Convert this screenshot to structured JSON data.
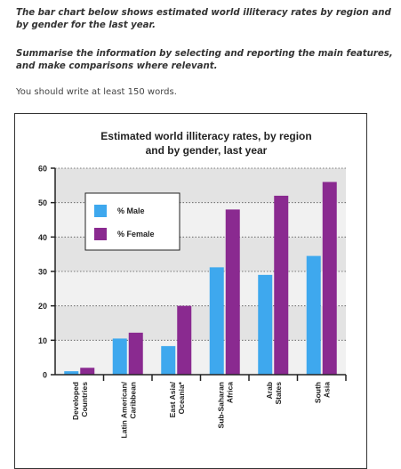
{
  "prompt": {
    "task_line1": "The bar chart below shows estimated world illiteracy rates by region and by gender for the last year.",
    "task_line2": "Summarise the information by selecting and reporting the main features, and make comparisons where relevant.",
    "instruction": "You should write at least 150 words."
  },
  "chart_data": {
    "type": "bar",
    "title": [
      "Estimated world illiteracy rates, by region",
      "and by gender, last year"
    ],
    "categories": [
      [
        "Developed",
        "Countries"
      ],
      [
        "Latin American/",
        "Caribbean"
      ],
      [
        "East Asia/",
        "Oceania*"
      ],
      [
        "Sub-Saharan",
        "Africa"
      ],
      [
        "Arab",
        "States"
      ],
      [
        "South",
        "Asia"
      ]
    ],
    "series": [
      {
        "name": "% Male",
        "color": "#3ea8ee",
        "values": [
          1,
          10.5,
          8.3,
          31.2,
          29,
          34.5
        ]
      },
      {
        "name": "% Female",
        "color": "#8a2a90",
        "values": [
          2,
          12.2,
          20,
          48,
          52,
          56
        ]
      }
    ],
    "ylim": [
      0,
      60
    ],
    "yticks": [
      0,
      10,
      20,
      30,
      40,
      50,
      60
    ],
    "legend_placement": "top-left",
    "grid": "dotted horizontal, alternating bands",
    "xlabel": "",
    "ylabel": ""
  }
}
